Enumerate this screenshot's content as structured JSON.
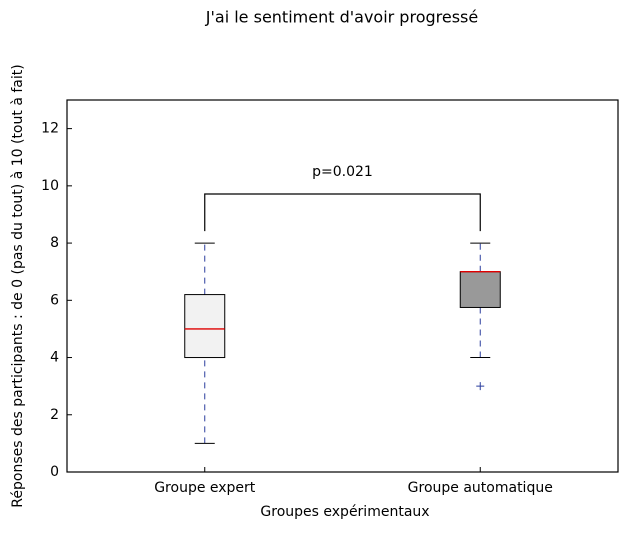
{
  "chart_data": {
    "type": "box",
    "title": "J'ai le sentiment d'avoir progressé",
    "xlabel": "Groupes expérimentaux",
    "ylabel": "Réponses des participants : de 0 (pas du tout) à 10 (tout à fait)",
    "categories": [
      "Groupe expert",
      "Groupe automatique"
    ],
    "boxes": [
      {
        "whislo": 1,
        "q1": 4,
        "median": 5,
        "q3": 6.2,
        "whishi": 8,
        "fliers": [],
        "color": "#f2f2f2"
      },
      {
        "whislo": 4,
        "q1": 5.75,
        "median": 7,
        "q3": 7,
        "whishi": 8,
        "fliers": [
          3
        ],
        "color": "#999999"
      }
    ],
    "annotation": "p=0.021",
    "ylim": [
      0,
      13
    ],
    "yticks": [
      0,
      2,
      4,
      6,
      8,
      10,
      12
    ]
  }
}
